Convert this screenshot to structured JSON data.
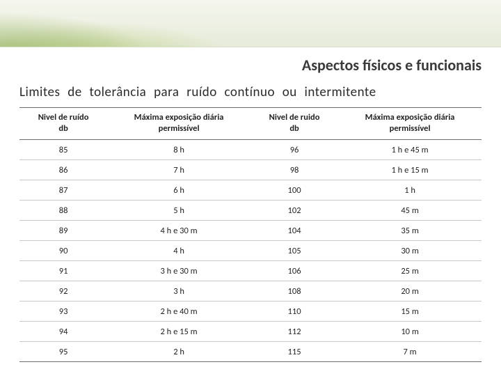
{
  "colors": {
    "text": "#222222",
    "title": "#3a3a3a",
    "rule_strong": "#6b6b6b",
    "rule_light": "#c9c9c9",
    "banner_top": "#f4f6ee",
    "banner_bottom": "#e6ebda",
    "banner_accent": "#7aa034"
  },
  "typography": {
    "title_fontsize": 22,
    "subtitle_fontsize": 19,
    "header_fontsize": 12.5,
    "cell_fontsize": 12.5,
    "font_family": "Calibri"
  },
  "title": "Aspectos físicos e funcionais",
  "subtitle": "Limites de tolerância para ruído contínuo ou intermitente",
  "table": {
    "columns": [
      {
        "line1": "Nivel de ruído",
        "line2": "db"
      },
      {
        "line1": "Máxima exposição diária",
        "line2": "permissível"
      },
      {
        "line1": "Nivel de ruido",
        "line2": "db"
      },
      {
        "line1": "Máxima exposição diária",
        "line2": "permissível"
      }
    ],
    "col_widths_pct": [
      19,
      31,
      19,
      31
    ],
    "rows": [
      [
        "85",
        "8 h",
        "96",
        "1 h e 45 m"
      ],
      [
        "86",
        "7 h",
        "98",
        "1 h e 15 m"
      ],
      [
        "87",
        "6 h",
        "100",
        "1 h"
      ],
      [
        "88",
        "5 h",
        "102",
        "45 m"
      ],
      [
        "89",
        "4 h e 30 m",
        "104",
        "35 m"
      ],
      [
        "90",
        "4 h",
        "105",
        "30 m"
      ],
      [
        "91",
        "3 h e 30 m",
        "106",
        "25 m"
      ],
      [
        "92",
        "3 h",
        "108",
        "20 m"
      ],
      [
        "93",
        "2 h e 40 m",
        "110",
        "15 m"
      ],
      [
        "94",
        "2 h e 15 m",
        "112",
        "10 m"
      ],
      [
        "95",
        "2 h",
        "115",
        "7 m"
      ]
    ]
  }
}
